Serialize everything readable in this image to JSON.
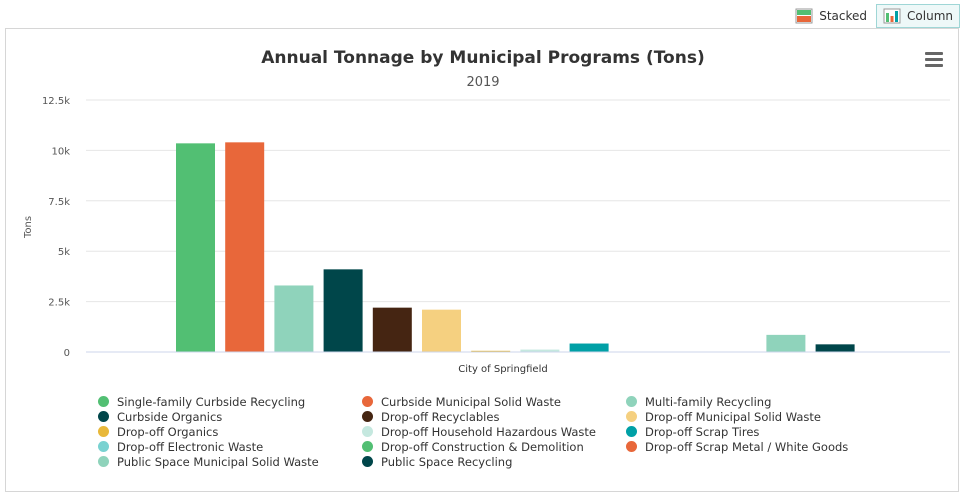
{
  "toolbar": {
    "stacked_label": "Stacked",
    "column_label": "Column",
    "stacked_icon": "stacked-bar-icon",
    "column_icon": "column-bar-icon",
    "active": "Column"
  },
  "menu_icon": "hamburger-menu-icon",
  "chart_data": {
    "type": "bar",
    "title": "Annual Tonnage by Municipal Programs (Tons)",
    "subtitle": "2019",
    "xlabel": "",
    "ylabel": "Tons",
    "ylim": [
      0,
      12500
    ],
    "yticks": [
      "0",
      "2.5k",
      "5k",
      "7.5k",
      "10k",
      "12.5k"
    ],
    "ytick_values": [
      0,
      2500,
      5000,
      7500,
      10000,
      12500
    ],
    "grid": true,
    "legend_position": "bottom",
    "categories": [
      "City of Springfield"
    ],
    "series": [
      {
        "name": "Single-family Curbside Recycling",
        "color": "#52bf73",
        "values": [
          10350
        ]
      },
      {
        "name": "Curbside Municipal Solid Waste",
        "color": "#e8673a",
        "values": [
          10400
        ]
      },
      {
        "name": "Multi-family Recycling",
        "color": "#8fd3bb",
        "values": [
          3300
        ]
      },
      {
        "name": "Curbside Organics",
        "color": "#00464a",
        "values": [
          4100
        ]
      },
      {
        "name": "Drop-off Recyclables",
        "color": "#452512",
        "values": [
          2200
        ]
      },
      {
        "name": "Drop-off Municipal Solid Waste",
        "color": "#f5d080",
        "values": [
          2100
        ]
      },
      {
        "name": "Drop-off Organics",
        "color": "#e8b83a",
        "values": [
          60
        ]
      },
      {
        "name": "Drop-off Household Hazardous Waste",
        "color": "#c5e8df",
        "values": [
          120
        ]
      },
      {
        "name": "Drop-off Scrap Tires",
        "color": "#00a0a6",
        "values": [
          420
        ]
      },
      {
        "name": "Drop-off Electronic Waste",
        "color": "#79d2d1",
        "values": [
          0
        ]
      },
      {
        "name": "Drop-off Construction & Demolition",
        "color": "#52bf73",
        "values": [
          0
        ]
      },
      {
        "name": "Drop-off Scrap Metal / White Goods",
        "color": "#e8673a",
        "values": [
          0
        ]
      },
      {
        "name": "Public Space Municipal Solid Waste",
        "color": "#8fd3bb",
        "values": [
          850
        ]
      },
      {
        "name": "Public Space Recycling",
        "color": "#00464a",
        "values": [
          380
        ]
      }
    ]
  }
}
